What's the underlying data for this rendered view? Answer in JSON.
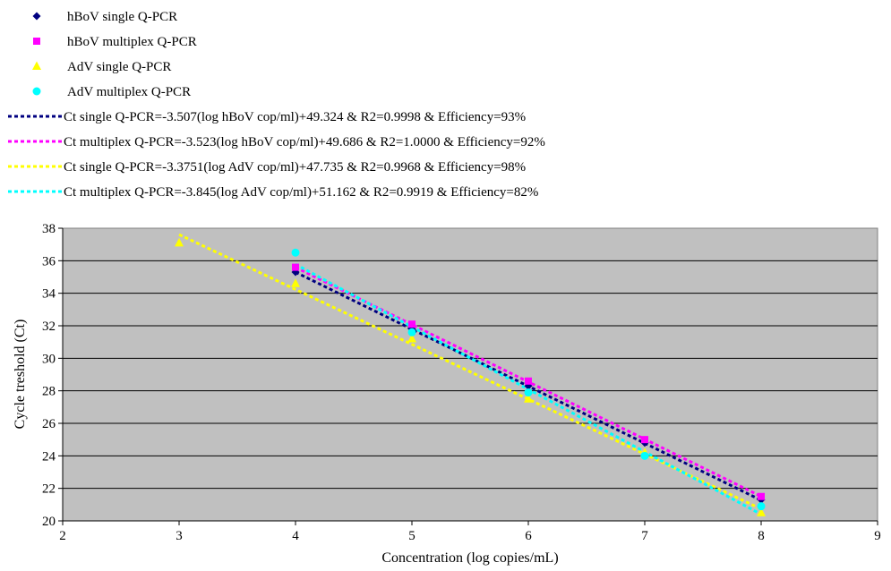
{
  "chart_data": {
    "type": "scatter",
    "xlabel": "Concentration (log copies/mL)",
    "ylabel": "Cycle treshold (Ct)",
    "xlim": [
      2,
      9
    ],
    "ylim": [
      20,
      38
    ],
    "x_ticks": [
      "2",
      "3",
      "4",
      "5",
      "6",
      "7",
      "8",
      "9"
    ],
    "y_ticks": [
      "20",
      "22",
      "24",
      "26",
      "28",
      "30",
      "32",
      "34",
      "36",
      "38"
    ],
    "grid": "horizontal",
    "plot_background": "#c0c0c0",
    "legend_position": "top",
    "series": [
      {
        "name": "hBoV single Q-PCR",
        "marker": "diamond",
        "color": "#000080",
        "x": [
          4,
          5,
          6,
          7,
          8
        ],
        "y": [
          35.3,
          31.8,
          28.3,
          24.8,
          21.3
        ]
      },
      {
        "name": "hBoV multiplex Q-PCR",
        "marker": "square",
        "color": "#ff00ff",
        "x": [
          4,
          5,
          6,
          7,
          8
        ],
        "y": [
          35.6,
          32.1,
          28.6,
          25.0,
          21.5
        ]
      },
      {
        "name": "AdV single Q-PCR",
        "marker": "triangle",
        "color": "#ffff00",
        "x": [
          3,
          4,
          5,
          6,
          7,
          8
        ],
        "y": [
          37.1,
          34.6,
          31.2,
          27.5,
          24.2,
          20.5
        ]
      },
      {
        "name": "AdV multiplex Q-PCR",
        "marker": "circle",
        "color": "#00ffff",
        "x": [
          4,
          5,
          6,
          7,
          8
        ],
        "y": [
          36.5,
          31.6,
          27.9,
          24.0,
          20.9
        ]
      }
    ],
    "trendlines": [
      {
        "name": "Ct single Q-PCR=-3.507(log hBoV cop/ml)+49.324 & R2=0.9998 & Efficiency=93%",
        "color": "#000080",
        "slope": -3.507,
        "intercept": 49.324,
        "x_range": [
          4,
          8
        ]
      },
      {
        "name": "Ct multiplex Q-PCR=-3.523(log hBoV cop/ml)+49.686 & R2=1.0000 & Efficiency=92%",
        "color": "#ff00ff",
        "slope": -3.523,
        "intercept": 49.686,
        "x_range": [
          4,
          8
        ]
      },
      {
        "name": "Ct single Q-PCR=-3.3751(log AdV cop/ml)+47.735 & R2=0.9968 & Efficiency=98%",
        "color": "#ffff00",
        "slope": -3.3751,
        "intercept": 47.735,
        "x_range": [
          3,
          8
        ]
      },
      {
        "name": "Ct multiplex Q-PCR=-3.845(log AdV cop/ml)+51.162 & R2=0.9919 & Efficiency=82%",
        "color": "#00ffff",
        "slope": -3.845,
        "intercept": 51.162,
        "x_range": [
          4,
          8
        ]
      }
    ]
  }
}
